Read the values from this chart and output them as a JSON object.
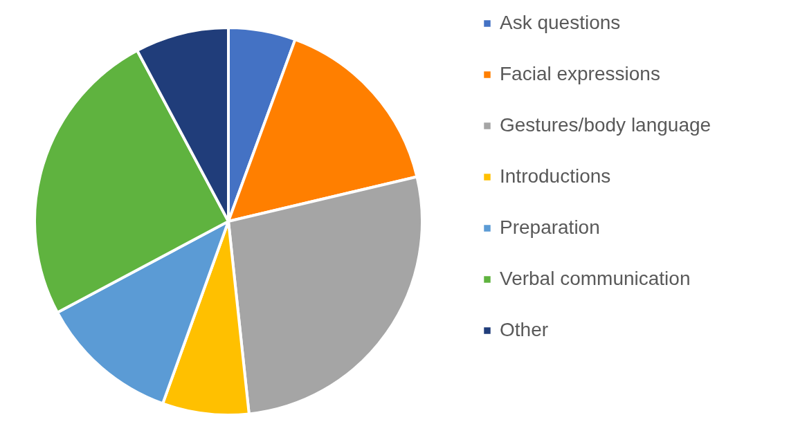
{
  "chart_data": {
    "type": "pie",
    "categories": [
      "Ask questions",
      "Facial expressions",
      "Gestures/body language",
      "Introductions",
      "Preparation",
      "Verbal communication",
      "Other"
    ],
    "values": [
      5.6,
      15.7,
      27.0,
      7.2,
      11.7,
      25.0,
      7.8
    ],
    "colors": [
      "#4472c4",
      "#ff7f00",
      "#a5a5a5",
      "#ffc000",
      "#5b9bd5",
      "#5fb33f",
      "#203d7a"
    ],
    "legend": "right"
  }
}
